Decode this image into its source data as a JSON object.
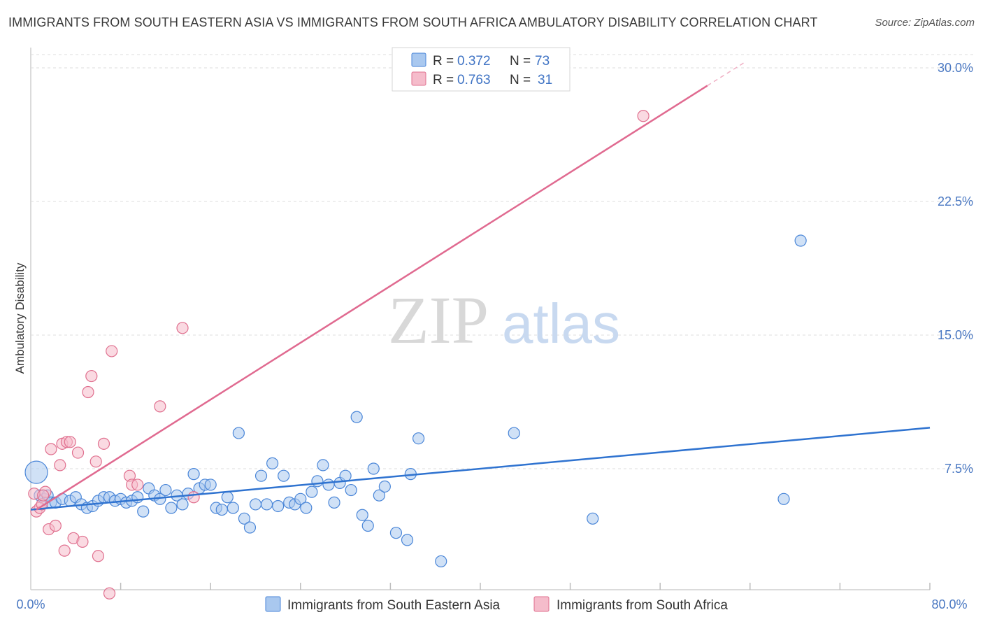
{
  "header": {
    "title": "IMMIGRANTS FROM SOUTH EASTERN ASIA VS IMMIGRANTS FROM SOUTH AFRICA AMBULATORY DISABILITY CORRELATION CHART",
    "source": "Source: ZipAtlas.com"
  },
  "watermark": {
    "zip": "ZIP",
    "atlas": "atlas"
  },
  "colors": {
    "blue": "#4a86d8",
    "blue_fill": "#a9c8ef",
    "pink": "#e0708f",
    "pink_fill": "#f5bccb",
    "blue_line": "#2f73d0",
    "pink_line": "#e06a90"
  },
  "legend": {
    "items": [
      {
        "r_label": "R = ",
        "r_value": "0.372",
        "n_label": "N = ",
        "n_value": "73"
      },
      {
        "r_label": "R = ",
        "r_value": "0.763",
        "n_label": "N = ",
        "n_value": "31"
      }
    ]
  },
  "bottom_legend": [
    "Immigrants from South Eastern Asia",
    "Immigrants from South Africa"
  ],
  "chart_data": {
    "type": "scatter",
    "title": "IMMIGRANTS FROM SOUTH EASTERN ASIA VS IMMIGRANTS FROM SOUTH AFRICA AMBULATORY DISABILITY CORRELATION CHART",
    "xlabel": "",
    "ylabel": "Ambulatory Disability",
    "xlim": [
      0,
      80
    ],
    "ylim": [
      0,
      31
    ],
    "x_tick_labels": [
      "0.0%",
      "80.0%"
    ],
    "y_ticks": [
      7.5,
      15.0,
      22.5,
      30.0
    ],
    "y_tick_labels": [
      "7.5%",
      "15.0%",
      "22.5%",
      "30.0%"
    ],
    "grid": true,
    "series": [
      {
        "name": "Immigrants from South Eastern Asia",
        "r": 0.372,
        "n": 73,
        "trend": {
          "x": [
            0,
            80
          ],
          "y": [
            5.2,
            9.8
          ]
        },
        "points": [
          [
            0.5,
            7.3
          ],
          [
            0.8,
            6.0
          ],
          [
            1.2,
            5.8
          ],
          [
            1.5,
            6.0
          ],
          [
            1.8,
            5.6
          ],
          [
            2.2,
            5.6
          ],
          [
            2.8,
            5.8
          ],
          [
            3.5,
            5.7
          ],
          [
            4.0,
            5.9
          ],
          [
            4.5,
            5.5
          ],
          [
            5.0,
            5.3
          ],
          [
            5.5,
            5.4
          ],
          [
            6.0,
            5.7
          ],
          [
            6.5,
            5.9
          ],
          [
            7.0,
            5.9
          ],
          [
            7.5,
            5.7
          ],
          [
            8.0,
            5.8
          ],
          [
            8.5,
            5.6
          ],
          [
            9.0,
            5.7
          ],
          [
            9.5,
            5.9
          ],
          [
            10.0,
            5.1
          ],
          [
            10.5,
            6.4
          ],
          [
            11.0,
            6.0
          ],
          [
            11.5,
            5.8
          ],
          [
            12.0,
            6.3
          ],
          [
            12.5,
            5.3
          ],
          [
            13.0,
            6.0
          ],
          [
            13.5,
            5.5
          ],
          [
            14.0,
            6.1
          ],
          [
            14.5,
            7.2
          ],
          [
            15.0,
            6.4
          ],
          [
            15.5,
            6.6
          ],
          [
            16.0,
            6.6
          ],
          [
            16.5,
            5.3
          ],
          [
            17.0,
            5.2
          ],
          [
            17.5,
            5.9
          ],
          [
            18.0,
            5.3
          ],
          [
            18.5,
            9.5
          ],
          [
            19.0,
            4.7
          ],
          [
            19.5,
            4.2
          ],
          [
            20.0,
            5.5
          ],
          [
            20.5,
            7.1
          ],
          [
            21.0,
            5.5
          ],
          [
            21.5,
            7.8
          ],
          [
            22.0,
            5.4
          ],
          [
            22.5,
            7.1
          ],
          [
            23.0,
            5.6
          ],
          [
            23.5,
            5.5
          ],
          [
            24.0,
            5.8
          ],
          [
            24.5,
            5.3
          ],
          [
            25.0,
            6.2
          ],
          [
            25.5,
            6.8
          ],
          [
            26.0,
            7.7
          ],
          [
            26.5,
            6.6
          ],
          [
            27.0,
            5.6
          ],
          [
            27.5,
            6.7
          ],
          [
            28.0,
            7.1
          ],
          [
            28.5,
            6.3
          ],
          [
            29.0,
            10.4
          ],
          [
            29.5,
            4.9
          ],
          [
            30.0,
            4.3
          ],
          [
            30.5,
            7.5
          ],
          [
            31.0,
            6.0
          ],
          [
            31.5,
            6.5
          ],
          [
            32.5,
            3.9
          ],
          [
            33.5,
            3.5
          ],
          [
            33.8,
            7.2
          ],
          [
            34.5,
            9.2
          ],
          [
            36.5,
            2.3
          ],
          [
            43.0,
            9.5
          ],
          [
            50.0,
            4.7
          ],
          [
            67.0,
            5.8
          ],
          [
            68.5,
            20.3
          ]
        ]
      },
      {
        "name": "Immigrants from South Africa",
        "r": 0.763,
        "n": 31,
        "trend": {
          "x": [
            0.5,
            60.2
          ],
          "y": [
            5.2,
            29.0
          ],
          "dashed_ext": {
            "x": [
              60.2,
              63.5
            ],
            "y": [
              29.0,
              30.3
            ]
          }
        },
        "points": [
          [
            0.3,
            6.1
          ],
          [
            0.5,
            5.1
          ],
          [
            0.8,
            5.3
          ],
          [
            1.0,
            5.5
          ],
          [
            1.3,
            6.2
          ],
          [
            1.6,
            4.1
          ],
          [
            1.8,
            8.6
          ],
          [
            2.2,
            4.3
          ],
          [
            2.6,
            7.7
          ],
          [
            2.8,
            8.9
          ],
          [
            3.0,
            2.9
          ],
          [
            3.2,
            9.0
          ],
          [
            3.5,
            9.0
          ],
          [
            3.8,
            3.6
          ],
          [
            4.2,
            8.4
          ],
          [
            4.6,
            3.4
          ],
          [
            5.1,
            11.8
          ],
          [
            5.4,
            12.7
          ],
          [
            5.8,
            7.9
          ],
          [
            6.0,
            2.6
          ],
          [
            6.5,
            8.9
          ],
          [
            7.0,
            0.5
          ],
          [
            7.2,
            14.1
          ],
          [
            8.8,
            7.1
          ],
          [
            9.0,
            6.6
          ],
          [
            9.5,
            6.6
          ],
          [
            11.5,
            11.0
          ],
          [
            13.5,
            15.4
          ],
          [
            14.5,
            5.9
          ],
          [
            54.5,
            27.3
          ],
          [
            1.1,
            6.0
          ]
        ]
      }
    ]
  }
}
